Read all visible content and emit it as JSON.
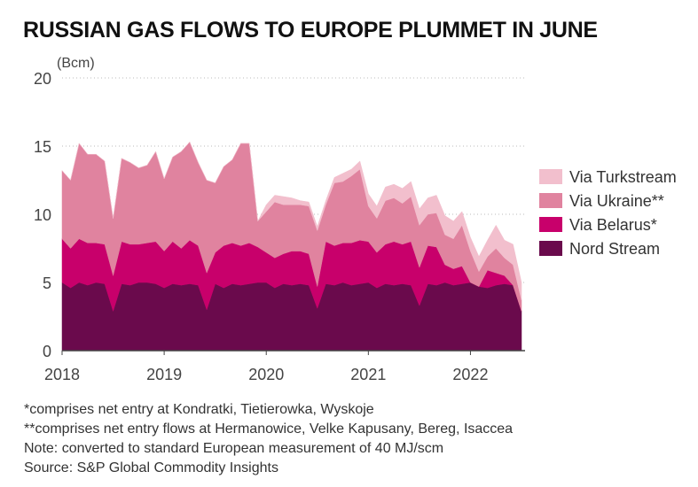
{
  "title": "RUSSIAN GAS FLOWS TO EUROPE PLUMMET IN JUNE",
  "notes": [
    "*comprises net entry at Kondratki, Tietierowka, Wyskoje",
    "**comprises net entry flows at Hermanowice, Velke Kapusany, Bereg, Isaccea",
    "Note: converted to standard European measurement of 40 MJ/scm",
    "Source: S&P Global Commodity Insights"
  ],
  "chart_data": {
    "type": "area",
    "stacked": true,
    "ylabel": "(Bcm)",
    "ylim": [
      0,
      20
    ],
    "yticks": [
      0,
      5,
      10,
      15,
      20
    ],
    "xlim": [
      2018,
      2022.5
    ],
    "xticks": [
      "2018",
      "2019",
      "2020",
      "2021",
      "2022"
    ],
    "grid": "horizontal dotted",
    "legend_position": "right",
    "x": [
      2018.0,
      2018.083,
      2018.167,
      2018.25,
      2018.333,
      2018.417,
      2018.5,
      2018.583,
      2018.667,
      2018.75,
      2018.833,
      2018.917,
      2019.0,
      2019.083,
      2019.167,
      2019.25,
      2019.333,
      2019.417,
      2019.5,
      2019.583,
      2019.667,
      2019.75,
      2019.833,
      2019.917,
      2020.0,
      2020.083,
      2020.167,
      2020.25,
      2020.333,
      2020.417,
      2020.5,
      2020.583,
      2020.667,
      2020.75,
      2020.833,
      2020.917,
      2021.0,
      2021.083,
      2021.167,
      2021.25,
      2021.333,
      2021.417,
      2021.5,
      2021.583,
      2021.667,
      2021.75,
      2021.833,
      2021.917,
      2022.0,
      2022.083,
      2022.167,
      2022.25,
      2022.333,
      2022.417,
      2022.5
    ],
    "series": [
      {
        "name": "Nord Stream",
        "color": "#6a0a4c",
        "values": [
          5.0,
          4.6,
          5.0,
          4.8,
          5.0,
          4.9,
          2.9,
          4.9,
          4.8,
          5.0,
          5.0,
          4.9,
          4.6,
          4.9,
          4.8,
          4.9,
          4.8,
          3.0,
          4.9,
          4.6,
          4.9,
          4.8,
          4.9,
          5.0,
          5.0,
          4.6,
          4.9,
          4.8,
          4.9,
          4.8,
          3.1,
          4.9,
          4.8,
          5.0,
          4.8,
          4.9,
          5.0,
          4.6,
          4.9,
          4.8,
          4.9,
          4.8,
          3.3,
          4.9,
          4.8,
          5.0,
          4.8,
          4.9,
          5.0,
          4.7,
          4.6,
          4.8,
          4.9,
          4.8,
          2.9
        ]
      },
      {
        "name": "Via Belarus*",
        "color": "#c8006b",
        "values": [
          3.2,
          2.9,
          3.2,
          3.1,
          2.9,
          2.9,
          2.6,
          3.1,
          3.0,
          2.8,
          2.9,
          3.1,
          2.7,
          3.1,
          2.7,
          3.2,
          2.9,
          2.7,
          2.3,
          3.1,
          3.0,
          2.9,
          3.0,
          2.6,
          2.2,
          2.2,
          2.2,
          2.5,
          2.4,
          2.3,
          1.6,
          3.1,
          2.9,
          2.9,
          3.1,
          3.2,
          3.0,
          2.6,
          2.9,
          3.2,
          2.9,
          3.2,
          2.8,
          2.8,
          2.8,
          1.3,
          1.2,
          1.3,
          0.0,
          0.0,
          1.3,
          0.9,
          0.6,
          0.0,
          0.0
        ]
      },
      {
        "name": "Via Ukraine**",
        "color": "#e0839f",
        "values": [
          5.0,
          5.0,
          7.0,
          6.5,
          6.5,
          6.1,
          4.2,
          6.1,
          6.0,
          5.6,
          5.7,
          6.6,
          5.3,
          6.2,
          7.1,
          7.2,
          6.1,
          6.8,
          5.1,
          5.8,
          6.1,
          7.5,
          7.3,
          1.9,
          3.0,
          4.1,
          3.6,
          3.4,
          3.4,
          3.5,
          4.1,
          2.7,
          4.6,
          4.5,
          4.9,
          5.2,
          2.6,
          2.5,
          3.2,
          3.2,
          3.0,
          3.3,
          3.1,
          2.3,
          2.5,
          2.2,
          2.2,
          3.0,
          2.3,
          1.1,
          1.0,
          1.8,
          1.3,
          1.5,
          0.8
        ]
      },
      {
        "name": "Via Turkstream",
        "color": "#f2bfcd",
        "values": [
          0.0,
          0.0,
          0.0,
          0.0,
          0.0,
          0.0,
          0.0,
          0.0,
          0.0,
          0.0,
          0.0,
          0.0,
          0.0,
          0.0,
          0.0,
          0.0,
          0.0,
          0.0,
          0.0,
          0.0,
          0.0,
          0.0,
          0.0,
          0.0,
          0.5,
          0.5,
          0.6,
          0.5,
          0.3,
          0.3,
          0.3,
          0.3,
          0.4,
          0.6,
          0.5,
          0.6,
          0.9,
          0.9,
          1.0,
          1.0,
          1.1,
          1.1,
          1.2,
          1.2,
          1.3,
          1.4,
          1.3,
          1.0,
          1.0,
          1.1,
          1.2,
          1.7,
          1.3,
          1.5,
          1.3
        ]
      }
    ],
    "legend_order": [
      "Via Turkstream",
      "Via Ukraine**",
      "Via Belarus*",
      "Nord Stream"
    ]
  }
}
